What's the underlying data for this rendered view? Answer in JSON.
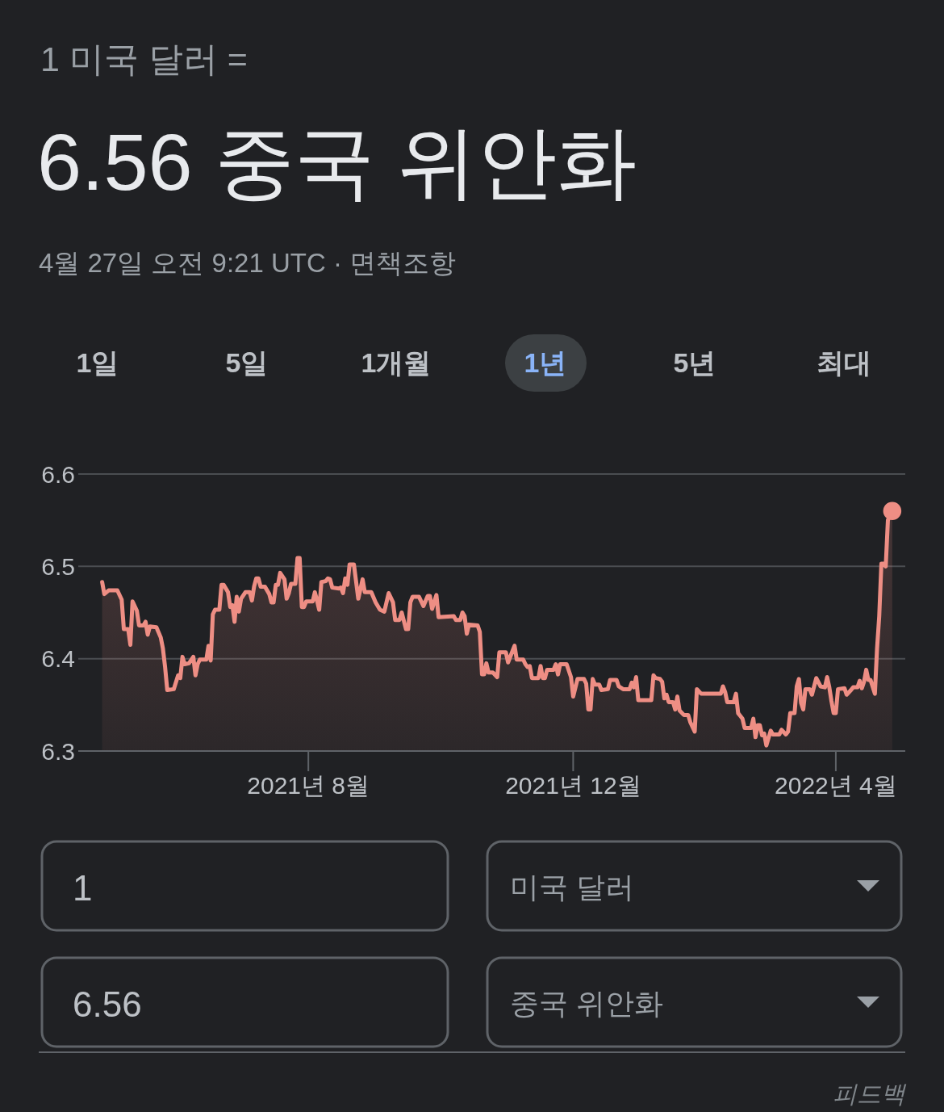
{
  "chart_data": {
    "type": "area",
    "subtitle": "1 미국 달러 =",
    "title": "6.56 중국 위안화",
    "annotations": [
      "4월 27일 오전 9:21 UTC · 면책조항",
      "1일",
      "5일",
      "1개월",
      "1년",
      "5년",
      "최대",
      "1",
      "미국 달러",
      "6.56",
      "중국 위안화",
      "피드백"
    ],
    "x": [
      "2021-04-28",
      "2021-04-29",
      "2021-05-01",
      "2021-05-05",
      "2021-05-07",
      "2021-05-08",
      "2021-05-10",
      "2021-05-11",
      "2021-05-12",
      "2021-05-14",
      "2021-05-15",
      "2021-05-17",
      "2021-05-18",
      "2021-05-19",
      "2021-05-20",
      "2021-05-23",
      "2021-05-25",
      "2021-05-26",
      "2021-05-27",
      "2021-05-28",
      "2021-05-31",
      "2021-06-02",
      "2021-06-03",
      "2021-06-04",
      "2021-06-05",
      "2021-06-07",
      "2021-06-09",
      "2021-06-10",
      "2021-06-11",
      "2021-06-12",
      "2021-06-15",
      "2021-06-16",
      "2021-06-17",
      "2021-06-18",
      "2021-06-19",
      "2021-06-21",
      "2021-06-22",
      "2021-06-23",
      "2021-06-25",
      "2021-06-26",
      "2021-06-27",
      "2021-06-28",
      "2021-06-29",
      "2021-06-30",
      "2021-07-01",
      "2021-07-03",
      "2021-07-05",
      "2021-07-06",
      "2021-07-07",
      "2021-07-08",
      "2021-07-09",
      "2021-07-10",
      "2021-07-12",
      "2021-07-14",
      "2021-07-15",
      "2021-07-16",
      "2021-07-17",
      "2021-07-18",
      "2021-07-19",
      "2021-07-21",
      "2021-07-22",
      "2021-07-23",
      "2021-07-24",
      "2021-07-26",
      "2021-07-27",
      "2021-07-28",
      "2021-07-29",
      "2021-07-30",
      "2021-07-31",
      "2021-08-03",
      "2021-08-04",
      "2021-08-05",
      "2021-08-06",
      "2021-08-07",
      "2021-08-09",
      "2021-08-10",
      "2021-08-11",
      "2021-08-12",
      "2021-08-15",
      "2021-08-16",
      "2021-08-17",
      "2021-08-18",
      "2021-08-19",
      "2021-08-20",
      "2021-08-22",
      "2021-08-24",
      "2021-08-26",
      "2021-08-27",
      "2021-08-30",
      "2021-09-01",
      "2021-09-03",
      "2021-09-05",
      "2021-09-07",
      "2021-09-09",
      "2021-09-10",
      "2021-09-12",
      "2021-09-13",
      "2021-09-15",
      "2021-09-16",
      "2021-09-17",
      "2021-09-18",
      "2021-09-21",
      "2021-09-22",
      "2021-09-23",
      "2021-09-25",
      "2021-09-26",
      "2021-09-27",
      "2021-09-29",
      "2021-09-30",
      "2021-10-07",
      "2021-10-08",
      "2021-10-10",
      "2021-10-11",
      "2021-10-12",
      "2021-10-13",
      "2021-10-14",
      "2021-10-18",
      "2021-10-19",
      "2021-10-20",
      "2021-10-21",
      "2021-10-22",
      "2021-10-23",
      "2021-10-25",
      "2021-10-27",
      "2021-10-28",
      "2021-10-31",
      "2021-11-01",
      "2021-11-04",
      "2021-11-05",
      "2021-11-08",
      "2021-11-09",
      "2021-11-10",
      "2021-11-11",
      "2021-11-12",
      "2021-11-15",
      "2021-11-16",
      "2021-11-17",
      "2021-11-18",
      "2021-11-19",
      "2021-11-22",
      "2021-11-23",
      "2021-11-24",
      "2021-11-25",
      "2021-11-28",
      "2021-11-30",
      "2021-12-01",
      "2021-12-03",
      "2021-12-06",
      "2021-12-07",
      "2021-12-08",
      "2021-12-09",
      "2021-12-10",
      "2021-12-11",
      "2021-12-13",
      "2021-12-14",
      "2021-12-17",
      "2021-12-18",
      "2021-12-21",
      "2021-12-22",
      "2021-12-24",
      "2021-12-27",
      "2021-12-28",
      "2021-12-29",
      "2021-12-30",
      "2021-12-31",
      "2022-01-06",
      "2022-01-07",
      "2022-01-08",
      "2022-01-10",
      "2022-01-11",
      "2022-01-12",
      "2022-01-13",
      "2022-01-14",
      "2022-01-16",
      "2022-01-17",
      "2022-01-18",
      "2022-01-19",
      "2022-01-21",
      "2022-01-23",
      "2022-01-24",
      "2022-01-26",
      "2022-01-27",
      "2022-01-29",
      "2022-02-07",
      "2022-02-08",
      "2022-02-09",
      "2022-02-10",
      "2022-02-13",
      "2022-02-14",
      "2022-02-15",
      "2022-02-16",
      "2022-02-17",
      "2022-02-18",
      "2022-02-21",
      "2022-02-22",
      "2022-02-23",
      "2022-02-24",
      "2022-02-25",
      "2022-02-26",
      "2022-02-27",
      "2022-02-28",
      "2022-03-02",
      "2022-03-03",
      "2022-03-06",
      "2022-03-07",
      "2022-03-09",
      "2022-03-10",
      "2022-03-11",
      "2022-03-13",
      "2022-03-14",
      "2022-03-15",
      "2022-03-16",
      "2022-03-17",
      "2022-03-18",
      "2022-03-20",
      "2022-03-21",
      "2022-03-23",
      "2022-03-25",
      "2022-03-27",
      "2022-03-28",
      "2022-03-29",
      "2022-03-30",
      "2022-03-31",
      "2022-04-01",
      "2022-04-02",
      "2022-04-05",
      "2022-04-06",
      "2022-04-08",
      "2022-04-09",
      "2022-04-11",
      "2022-04-12",
      "2022-04-13",
      "2022-04-14",
      "2022-04-15",
      "2022-04-16",
      "2022-04-17",
      "2022-04-19",
      "2022-04-20",
      "2022-04-21",
      "2022-04-22",
      "2022-04-23",
      "2022-04-24",
      "2022-04-25",
      "2022-04-27"
    ],
    "series": [
      {
        "color": "#ee8e84",
        "values": [
          6.483,
          6.47,
          6.474,
          6.474,
          6.464,
          6.432,
          6.432,
          6.415,
          6.462,
          6.452,
          6.436,
          6.436,
          6.44,
          6.426,
          6.435,
          6.434,
          6.423,
          6.411,
          6.391,
          6.366,
          6.367,
          6.382,
          6.379,
          6.402,
          6.394,
          6.395,
          6.402,
          6.382,
          6.394,
          6.399,
          6.399,
          6.414,
          6.398,
          6.448,
          6.453,
          6.453,
          6.48,
          6.48,
          6.472,
          6.456,
          6.458,
          6.44,
          6.467,
          6.451,
          6.465,
          6.472,
          6.472,
          6.463,
          6.478,
          6.487,
          6.487,
          6.478,
          6.478,
          6.47,
          6.461,
          6.461,
          6.48,
          6.48,
          6.493,
          6.486,
          6.465,
          6.471,
          6.481,
          6.481,
          6.509,
          6.509,
          6.456,
          6.456,
          6.462,
          6.462,
          6.472,
          6.463,
          6.453,
          6.483,
          6.484,
          6.487,
          6.486,
          6.477,
          6.476,
          6.477,
          6.471,
          6.487,
          6.48,
          6.502,
          6.502,
          6.465,
          6.486,
          6.472,
          6.472,
          6.461,
          6.453,
          6.451,
          6.471,
          6.461,
          6.442,
          6.442,
          6.45,
          6.432,
          6.432,
          6.461,
          6.467,
          6.467,
          6.462,
          6.457,
          6.468,
          6.468,
          6.454,
          6.469,
          6.445,
          6.446,
          6.442,
          6.442,
          6.45,
          6.446,
          6.427,
          6.437,
          6.436,
          6.429,
          6.383,
          6.383,
          6.395,
          6.385,
          6.385,
          6.38,
          6.407,
          6.407,
          6.396,
          6.414,
          6.399,
          6.399,
          6.394,
          6.391,
          6.392,
          6.379,
          6.379,
          6.392,
          6.379,
          6.379,
          6.388,
          6.388,
          6.394,
          6.383,
          6.394,
          6.394,
          6.38,
          6.359,
          6.378,
          6.378,
          6.373,
          6.345,
          6.345,
          6.378,
          6.372,
          6.372,
          6.366,
          6.367,
          6.377,
          6.377,
          6.37,
          6.367,
          6.367,
          6.374,
          6.369,
          6.38,
          6.355,
          6.355,
          6.382,
          6.379,
          6.378,
          6.375,
          6.357,
          6.361,
          6.353,
          6.353,
          6.345,
          6.359,
          6.344,
          6.339,
          6.339,
          6.331,
          6.321,
          6.367,
          6.362,
          6.362,
          6.37,
          6.364,
          6.353,
          6.353,
          6.362,
          6.341,
          6.338,
          6.335,
          6.325,
          6.325,
          6.335,
          6.315,
          6.328,
          6.328,
          6.317,
          6.319,
          6.306,
          6.322,
          6.318,
          6.318,
          6.323,
          6.318,
          6.321,
          6.341,
          6.341,
          6.37,
          6.378,
          6.352,
          6.345,
          6.367,
          6.367,
          6.361,
          6.379,
          6.37,
          6.369,
          6.38,
          6.369,
          6.354,
          6.341,
          6.341,
          6.367,
          6.368,
          6.361,
          6.366,
          6.369,
          6.369,
          6.376,
          6.368,
          6.375,
          6.388,
          6.377,
          6.377,
          6.362,
          6.411,
          6.446,
          6.503,
          6.503,
          6.5,
          6.55,
          6.56
        ]
      },
      {
        "type": "scatter",
        "color": "#ee8e84",
        "marker": "circle",
        "x": [
          "2022-04-27"
        ],
        "values": [
          6.56
        ]
      }
    ],
    "xlim": [
      "2021-04-17",
      "2022-05-03"
    ],
    "ylim": [
      6.3,
      6.6
    ],
    "xticks": [
      {
        "value": "2021-08-01",
        "label": "2021년 8월"
      },
      {
        "value": "2021-12-01",
        "label": "2021년 12월"
      },
      {
        "value": "2022-04-01",
        "label": "2022년 4월"
      }
    ],
    "yticks": [
      6.3,
      6.4,
      6.5,
      6.6
    ],
    "grid": "y"
  }
}
